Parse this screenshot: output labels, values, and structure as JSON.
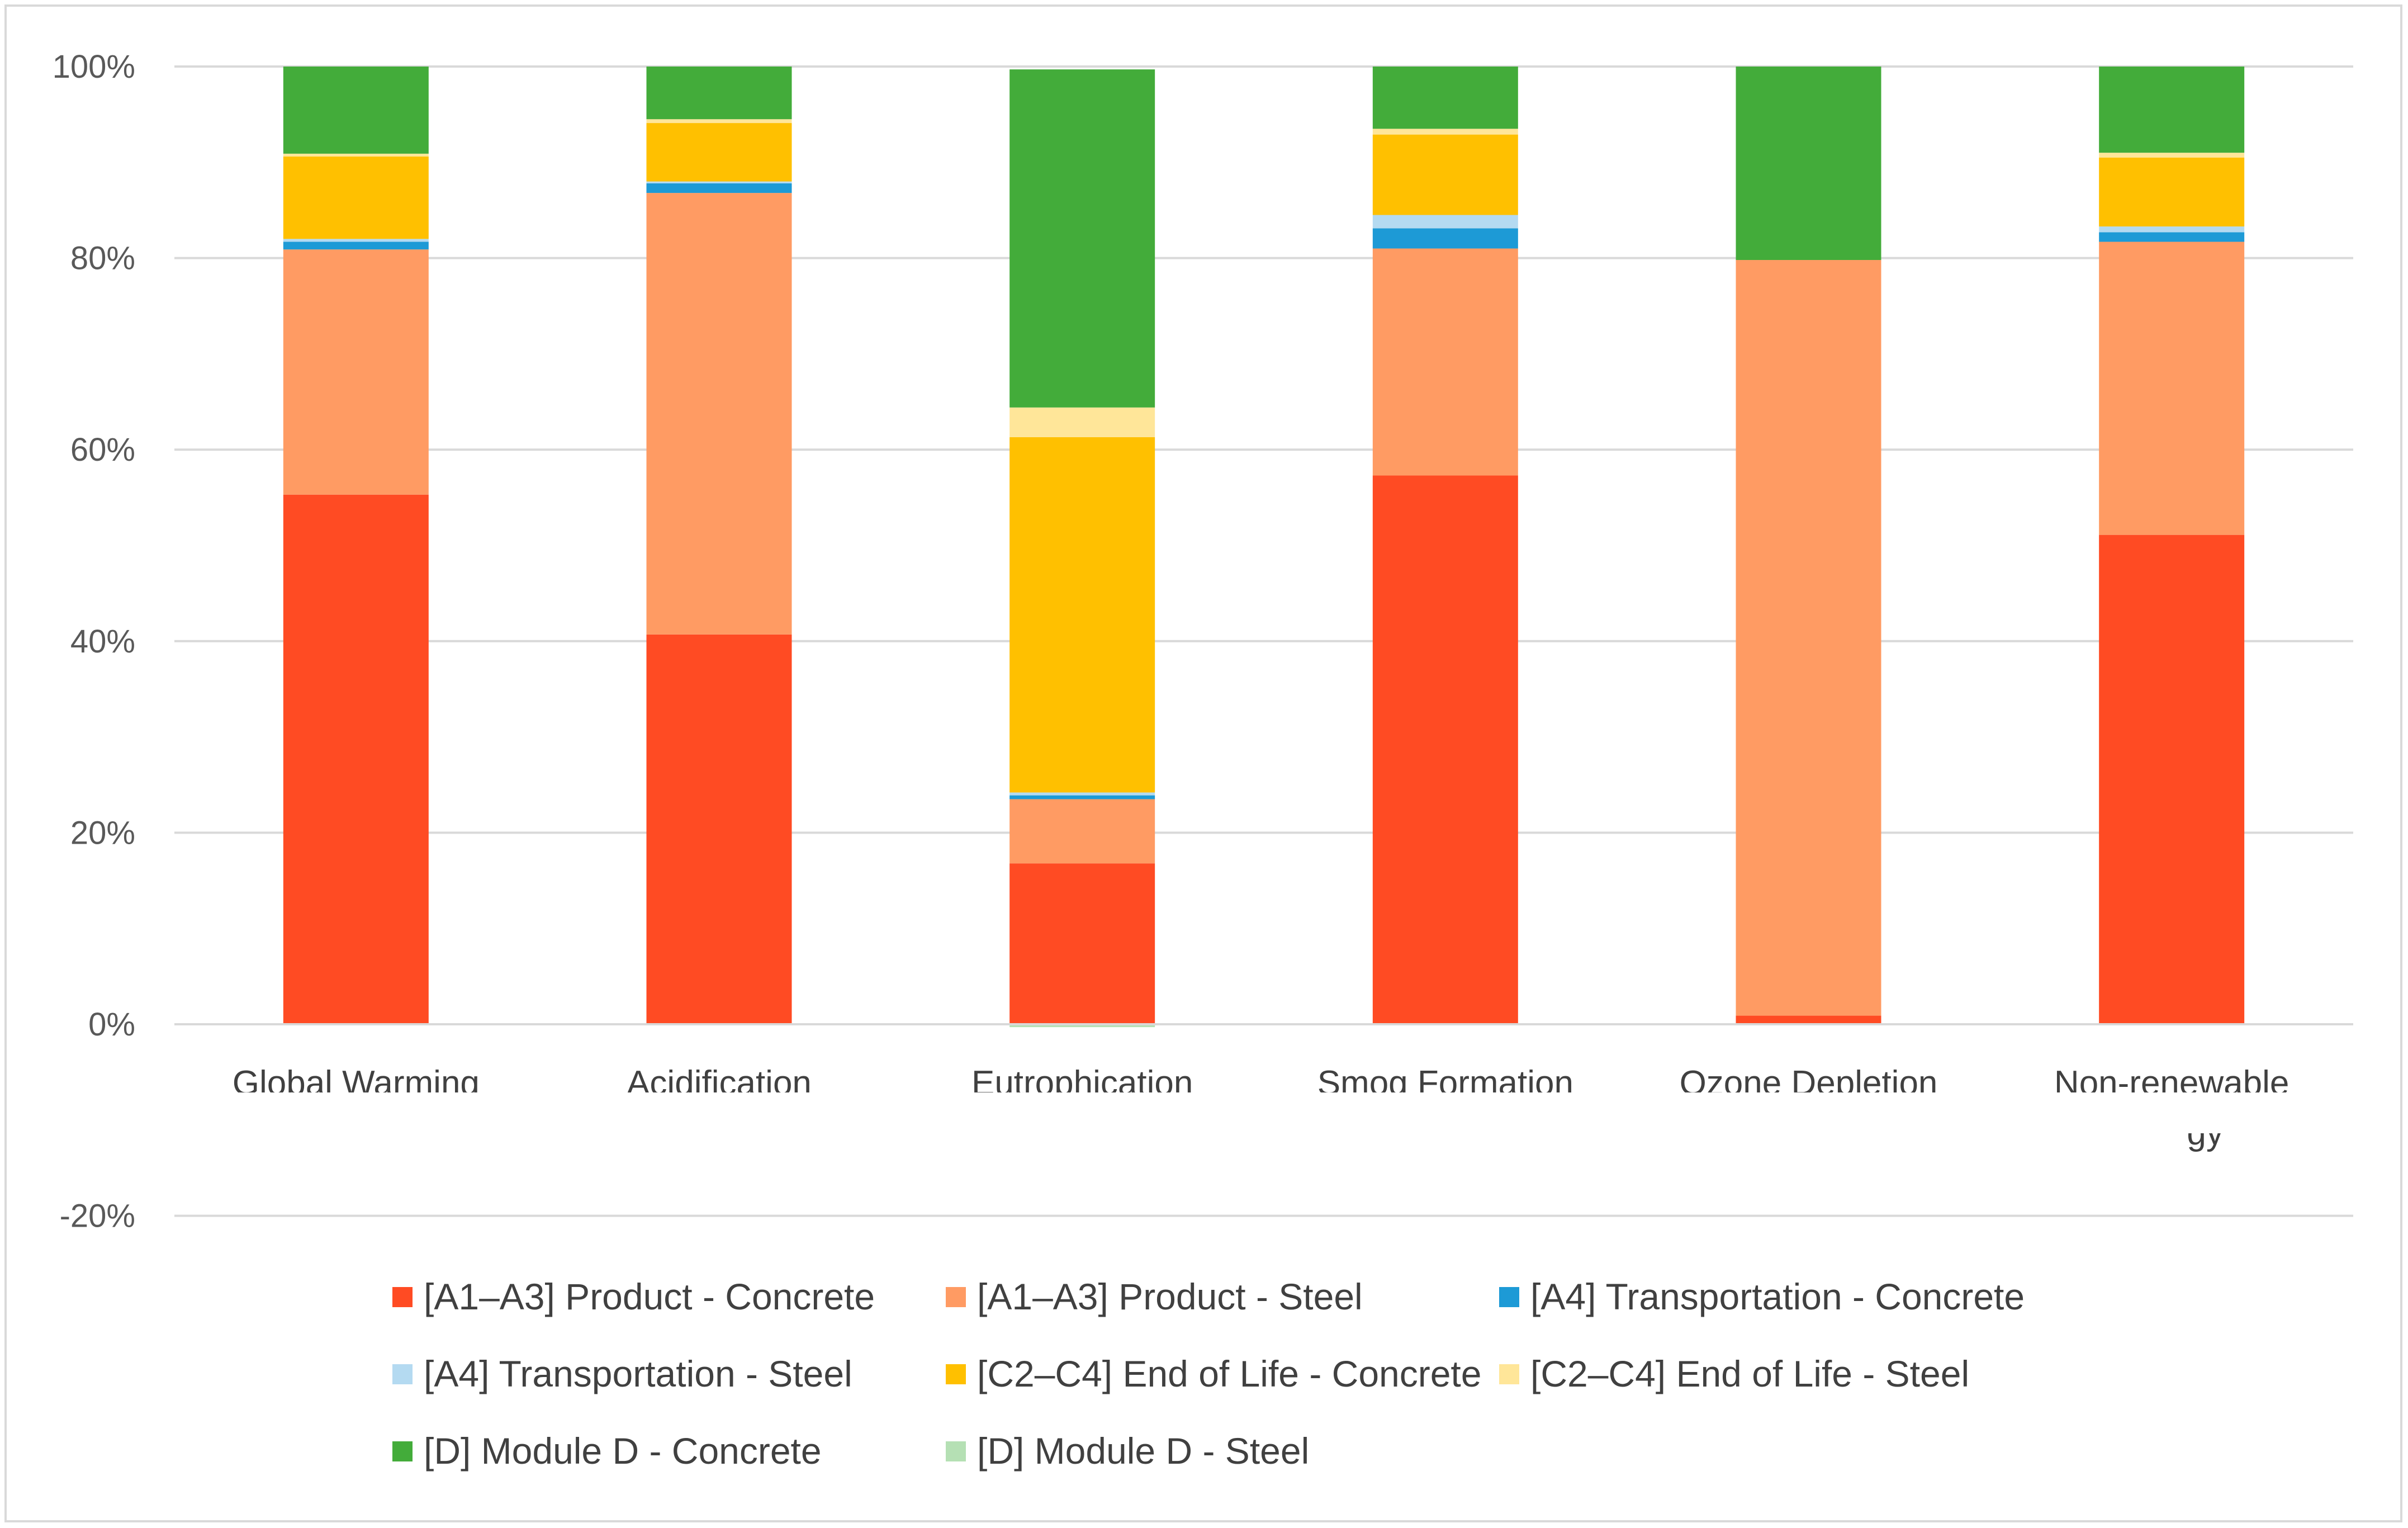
{
  "chart_data": {
    "type": "bar",
    "stacked": true,
    "title": "",
    "xlabel": "",
    "ylabel": "",
    "ylim": [
      -20,
      100
    ],
    "yticks": [
      -20,
      0,
      20,
      40,
      60,
      80,
      100
    ],
    "ytick_labels": [
      "-20%",
      "0%",
      "20%",
      "40%",
      "60%",
      "80%",
      "100%"
    ],
    "grid": true,
    "legend_position": "bottom",
    "categories": [
      "Global Warming",
      "Acidification",
      "Eutrophication",
      "Smog Formation",
      "Ozone Depletion",
      "Non-renewable"
    ],
    "series": [
      {
        "name": "[A1–A3] Product - Concrete",
        "color": "#FF4B23",
        "values": [
          55.3,
          40.7,
          16.8,
          57.3,
          0.9,
          51.1
        ]
      },
      {
        "name": "[A1–A3] Product - Steel",
        "color": "#FF9B63",
        "values": [
          25.6,
          46.1,
          6.7,
          23.7,
          78.9,
          30.6
        ]
      },
      {
        "name": "[A4] Transportation - Concrete",
        "color": "#1D9AD6",
        "values": [
          0.8,
          1.0,
          0.4,
          2.1,
          0.0,
          1.0
        ]
      },
      {
        "name": "[A4] Transportation - Steel",
        "color": "#B4DAF1",
        "values": [
          0.3,
          0.2,
          0.3,
          1.4,
          0.0,
          0.6
        ]
      },
      {
        "name": "[C2–C4] End of Life - Concrete",
        "color": "#FFC000",
        "values": [
          8.6,
          6.1,
          37.1,
          8.4,
          0.0,
          7.2
        ]
      },
      {
        "name": "[C2–C4] End of Life - Steel",
        "color": "#FFE699",
        "values": [
          0.3,
          0.4,
          3.1,
          0.6,
          0.0,
          0.5
        ]
      },
      {
        "name": "[D] Module D - Concrete",
        "color": "#43AC3A",
        "values": [
          9.1,
          5.5,
          35.3,
          6.5,
          20.2,
          9.0
        ]
      },
      {
        "name": "[D] Module D - Steel",
        "color": "#B5E0B4",
        "values": [
          0.0,
          0.0,
          -0.3,
          0.0,
          0.0,
          0.0
        ]
      }
    ],
    "overflow_fragment": "gy"
  }
}
